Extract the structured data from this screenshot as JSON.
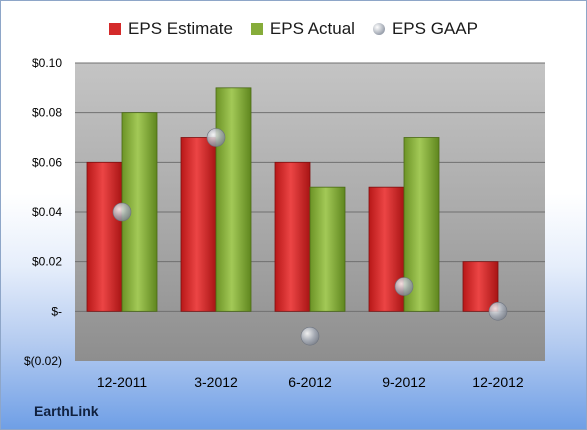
{
  "chart_data": {
    "type": "bar",
    "categories": [
      "12-2011",
      "3-2012",
      "6-2012",
      "9-2012",
      "12-2012"
    ],
    "series": [
      {
        "name": "EPS Estimate",
        "type": "bar",
        "values": [
          0.06,
          0.07,
          0.06,
          0.05,
          0.02
        ],
        "color": "#d42a2a"
      },
      {
        "name": "EPS Actual",
        "type": "bar",
        "values": [
          0.08,
          0.09,
          0.05,
          0.07,
          null
        ],
        "color": "#86ac3a"
      },
      {
        "name": "EPS GAAP",
        "type": "scatter",
        "values": [
          0.04,
          0.07,
          -0.01,
          0.01,
          0.0
        ],
        "color": "#a9b0bb"
      }
    ],
    "ylim": [
      -0.02,
      0.1
    ],
    "yticks": [
      {
        "value": 0.1,
        "label": "$0.10"
      },
      {
        "value": 0.08,
        "label": "$0.08"
      },
      {
        "value": 0.06,
        "label": "$0.06"
      },
      {
        "value": 0.04,
        "label": "$0.04"
      },
      {
        "value": 0.02,
        "label": "$0.02"
      },
      {
        "value": 0.0,
        "label": "$-"
      },
      {
        "value": -0.02,
        "label": "$(0.02)"
      }
    ],
    "grid": true,
    "legend_position": "top"
  },
  "footer": {
    "company": "EarthLink"
  }
}
